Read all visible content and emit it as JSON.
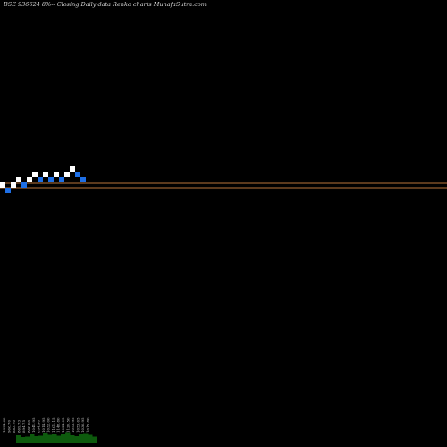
{
  "chart_data": {
    "type": "renko",
    "title": "BSE 936624  8%-- Closing Daily data  Renko  charts MunafaSutra.com",
    "colors": {
      "background": "#000000",
      "up_brick": "#ffffff",
      "down_brick": "#1e6fe6",
      "reference_line": "#b8733a",
      "volume": "#0d5a0d",
      "label": "#c8c8c8"
    },
    "bricks": [
      {
        "dir": "up",
        "level": 0
      },
      {
        "dir": "down",
        "level": -1
      },
      {
        "dir": "up",
        "level": 0
      },
      {
        "dir": "up",
        "level": 1
      },
      {
        "dir": "down",
        "level": 0
      },
      {
        "dir": "up",
        "level": 1
      },
      {
        "dir": "up",
        "level": 2
      },
      {
        "dir": "down",
        "level": 1
      },
      {
        "dir": "up",
        "level": 2
      },
      {
        "dir": "down",
        "level": 1
      },
      {
        "dir": "up",
        "level": 2
      },
      {
        "dir": "down",
        "level": 1
      },
      {
        "dir": "up",
        "level": 2
      },
      {
        "dir": "up",
        "level": 3
      },
      {
        "dir": "down",
        "level": 2
      },
      {
        "dir": "down",
        "level": 1
      }
    ],
    "reference_lines": [
      1,
      2
    ],
    "volume_labels": [
      "1394.60",
      "966.70",
      "883.70",
      "869.73",
      "894.75",
      "860.00",
      "1041.95",
      "894.90",
      "1014.95",
      "1032.00",
      "1101.15",
      "1148.80",
      "1024.05",
      "1120.50",
      "1053.95",
      "1053.65",
      "1036.95",
      "1015.80"
    ],
    "volume_values": [
      18,
      14,
      15,
      20,
      16,
      17,
      24,
      19,
      22,
      17,
      21,
      25,
      18,
      16,
      20,
      23,
      19,
      15
    ]
  }
}
